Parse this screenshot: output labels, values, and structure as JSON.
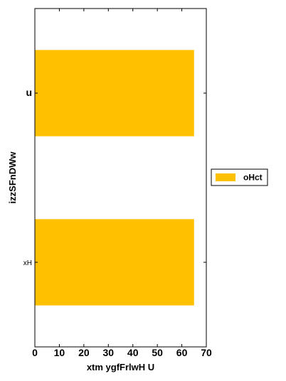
{
  "chart_data": {
    "type": "bar",
    "orientation": "horizontal",
    "categories": [
      "u",
      "xH"
    ],
    "series": [
      {
        "name": "oHct",
        "values": [
          65,
          65
        ],
        "color": "#FFC000"
      }
    ],
    "xlabel": "xtm ygfFrlwH U",
    "ylabel": "izzSFnDWw",
    "xlim": [
      0,
      70
    ],
    "xticks": [
      "0",
      "10",
      "20",
      "30",
      "40",
      "50",
      "60",
      "70"
    ],
    "grid": false,
    "legend_position": "right"
  }
}
